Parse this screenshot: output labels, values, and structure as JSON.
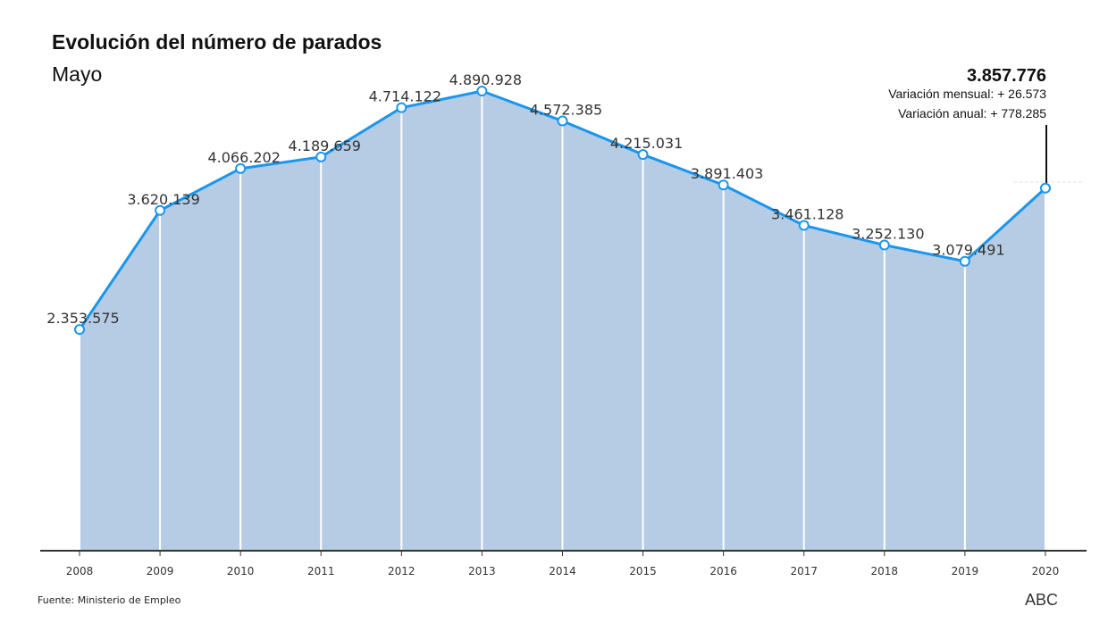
{
  "header": {
    "title": "Evolución del número de parados",
    "subtitle": "Mayo"
  },
  "annotation": {
    "value": "3.857.776",
    "monthly": "Variación mensual: + 26.573",
    "annual": "Variación anual: + 778.285"
  },
  "footer": {
    "source": "Fuente: Ministerio de Empleo",
    "brand": "ABC"
  },
  "colors": {
    "line": "#1a96ee",
    "fill": "#b5cce4",
    "axis": "#333333"
  },
  "chart_data": {
    "type": "area",
    "title": "Evolución del número de parados",
    "subtitle": "Mayo",
    "xlabel": "",
    "ylabel": "",
    "categories": [
      "2008",
      "2009",
      "2010",
      "2011",
      "2012",
      "2013",
      "2014",
      "2015",
      "2016",
      "2017",
      "2018",
      "2019",
      "2020"
    ],
    "values": [
      2353575,
      3620139,
      4066202,
      4189659,
      4714122,
      4890928,
      4572385,
      4215031,
      3891403,
      3461128,
      3252130,
      3079491,
      3857776
    ],
    "data_labels": [
      "2.353.575",
      "3.620.139",
      "4.066.202",
      "4.189.659",
      "4.714.122",
      "4.890.928",
      "4.572.385",
      "4.215.031",
      "3.891.403",
      "3.461.128",
      "3.252.130",
      "3.079.491",
      ""
    ],
    "ylim": [
      0,
      4890928
    ],
    "grid": false
  }
}
